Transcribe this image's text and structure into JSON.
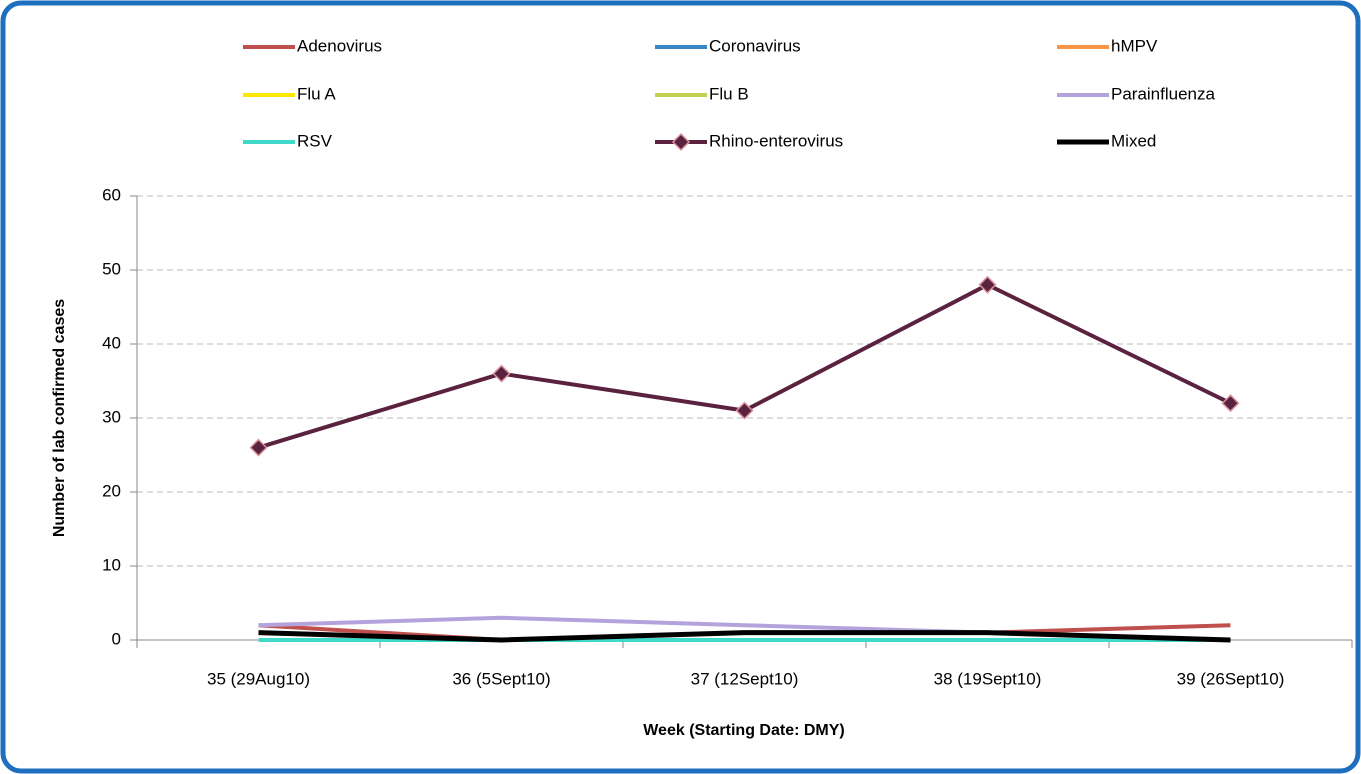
{
  "chart_data": {
    "type": "line",
    "x_label": "Week (Starting Date: DMY)",
    "y_label": "Number of lab confirmed cases",
    "categories": [
      "35 (29Aug10)",
      "36 (5Sept10)",
      "37 (12Sept10)",
      "38 (19Sept10)",
      "39 (26Sept10)"
    ],
    "series": [
      {
        "name": "Adenovirus",
        "color": "#c0504d",
        "values": [
          2,
          0,
          1,
          1,
          2
        ]
      },
      {
        "name": "Coronavirus",
        "color": "#3a87c8",
        "values": [
          0,
          0,
          0,
          0,
          0
        ]
      },
      {
        "name": "hMPV",
        "color": "#f79646",
        "values": [
          0,
          0,
          0,
          0,
          0
        ]
      },
      {
        "name": "Flu A",
        "color": "#ffe600",
        "values": [
          0,
          0,
          0,
          0,
          0
        ]
      },
      {
        "name": "Flu B",
        "color": "#c3d150",
        "values": [
          0,
          0,
          0,
          0,
          0
        ]
      },
      {
        "name": "Parainfluenza",
        "color": "#b3a2dc",
        "values": [
          2,
          3,
          2,
          1,
          0
        ]
      },
      {
        "name": "RSV",
        "color": "#40d8c8",
        "values": [
          0,
          0,
          0,
          0,
          0
        ]
      },
      {
        "name": "Rhino-enterovirus",
        "color": "#5b2240",
        "marker": "diamond",
        "values": [
          26,
          36,
          31,
          48,
          32
        ]
      },
      {
        "name": "Mixed",
        "color": "#000000",
        "values": [
          1,
          0,
          1,
          1,
          0
        ]
      }
    ],
    "ylim": [
      0,
      60
    ],
    "yticks": [
      0,
      10,
      20,
      30,
      40,
      50,
      60
    ],
    "grid": true,
    "legend": "top"
  }
}
